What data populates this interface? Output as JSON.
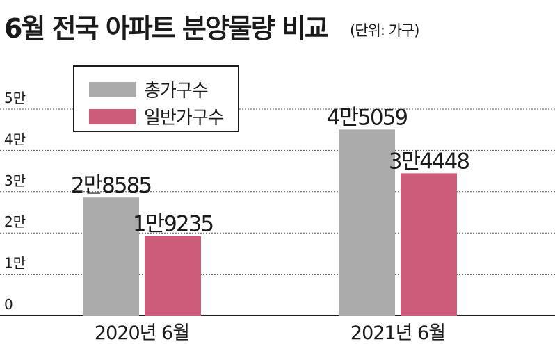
{
  "title": "6월 전국 아파트 분양물량 비교",
  "unit_note": "(단위: 가구)",
  "colors": {
    "total": "#ababab",
    "general": "#cd5c7b"
  },
  "chart_data": {
    "type": "bar",
    "categories": [
      "2020년 6월",
      "2021년 6월"
    ],
    "series": [
      {
        "name": "총가구수",
        "values": [
          28585,
          45059
        ],
        "labels": [
          "2만8585",
          "4만5059"
        ]
      },
      {
        "name": "일반가구수",
        "values": [
          19235,
          34448
        ],
        "labels": [
          "1만9235",
          "3만4448"
        ]
      }
    ],
    "yticks": [
      0,
      10000,
      20000,
      30000,
      40000,
      50000
    ],
    "ytick_labels": [
      "0",
      "1만",
      "2만",
      "3만",
      "4만",
      "5만"
    ],
    "ylim": [
      0,
      50000
    ],
    "grid": "dotted horizontal",
    "legend_position": "top-left"
  }
}
